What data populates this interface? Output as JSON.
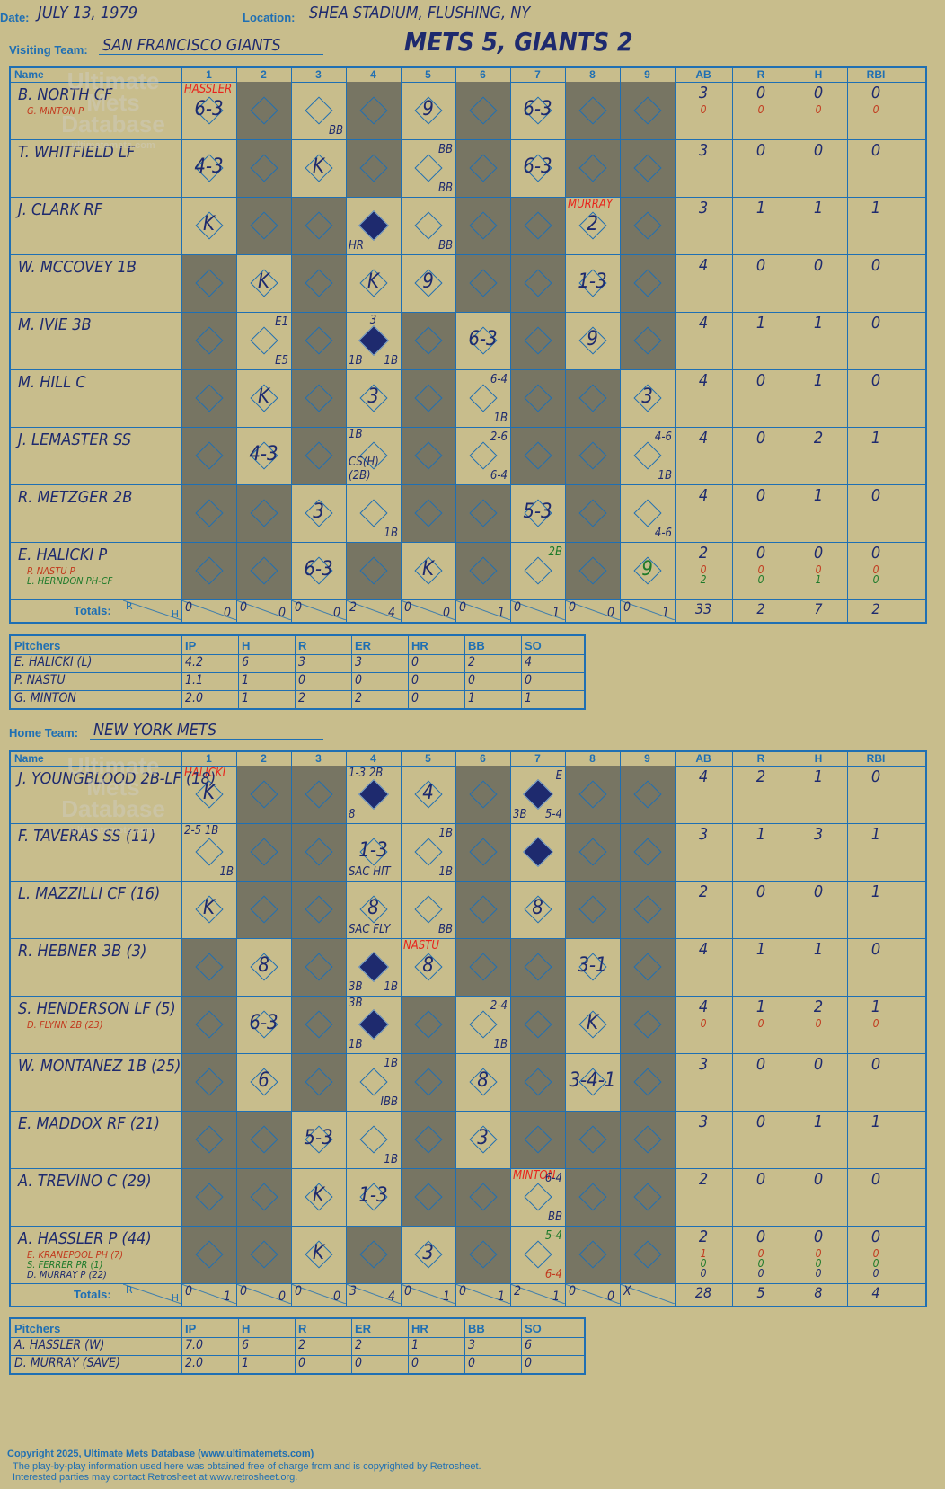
{
  "header": {
    "date_label": "Date:",
    "date": "JULY 13, 1979",
    "location_label": "Location:",
    "location": "SHEA STADIUM, FLUSHING, NY",
    "visiting_label": "Visiting Team:",
    "visiting_team": "SAN FRANCISCO GIANTS",
    "home_label": "Home Team:",
    "home_team": "NEW YORK METS",
    "result": "METS 5, GIANTS 2"
  },
  "columns": {
    "name": "Name",
    "innings": [
      "1",
      "2",
      "3",
      "4",
      "5",
      "6",
      "7",
      "8",
      "9"
    ],
    "stats": [
      "AB",
      "R",
      "H",
      "RBI"
    ]
  },
  "totals_label": "Totals:",
  "rh_r": "R",
  "rh_h": "H",
  "watermark": "Ultimate Mets Database",
  "watermark_sub": "ultimatemets.com",
  "visitors": {
    "players": [
      {
        "name": "B. NORTH CF",
        "sub": [
          {
            "text": "G. MINTON P",
            "color": "ored"
          }
        ],
        "ab": "3",
        "r": "0",
        "h": "0",
        "rbi": "0",
        "sub_stats": [
          {
            "ab": "0",
            "r": "0",
            "h": "0",
            "rbi": "0",
            "color": "ored"
          }
        ]
      },
      {
        "name": "T. WHITFIELD LF",
        "sub": [],
        "ab": "3",
        "r": "0",
        "h": "0",
        "rbi": "0",
        "sub_stats": []
      },
      {
        "name": "J. CLARK RF",
        "sub": [],
        "ab": "3",
        "r": "1",
        "h": "1",
        "rbi": "1",
        "sub_stats": []
      },
      {
        "name": "W. MCCOVEY 1B",
        "sub": [],
        "ab": "4",
        "r": "0",
        "h": "0",
        "rbi": "0",
        "sub_stats": []
      },
      {
        "name": "M. IVIE 3B",
        "sub": [],
        "ab": "4",
        "r": "1",
        "h": "1",
        "rbi": "0",
        "sub_stats": []
      },
      {
        "name": "M. HILL C",
        "sub": [],
        "ab": "4",
        "r": "0",
        "h": "1",
        "rbi": "0",
        "sub_stats": []
      },
      {
        "name": "J. LEMASTER SS",
        "sub": [],
        "ab": "4",
        "r": "0",
        "h": "2",
        "rbi": "1",
        "sub_stats": []
      },
      {
        "name": "R. METZGER 2B",
        "sub": [],
        "ab": "4",
        "r": "0",
        "h": "1",
        "rbi": "0",
        "sub_stats": []
      },
      {
        "name": "E. HALICKI P",
        "sub": [
          {
            "text": "P. NASTU P",
            "color": "ored"
          },
          {
            "text": "L. HERNDON PH-CF",
            "color": "green"
          }
        ],
        "ab": "2",
        "r": "0",
        "h": "0",
        "rbi": "0",
        "sub_stats": [
          {
            "ab": "0",
            "r": "0",
            "h": "0",
            "rbi": "0",
            "color": "ored"
          },
          {
            "ab": "2",
            "r": "0",
            "h": "1",
            "rbi": "0",
            "color": "green"
          }
        ]
      }
    ],
    "dark": [
      [
        0,
        1,
        0,
        1,
        0,
        1,
        0,
        1,
        1
      ],
      [
        0,
        1,
        0,
        1,
        0,
        1,
        0,
        1,
        1
      ],
      [
        0,
        1,
        1,
        0,
        0,
        1,
        1,
        0,
        1
      ],
      [
        1,
        0,
        1,
        0,
        0,
        1,
        1,
        0,
        1
      ],
      [
        1,
        0,
        1,
        0,
        1,
        0,
        1,
        0,
        1
      ],
      [
        1,
        0,
        1,
        0,
        1,
        0,
        1,
        1,
        0
      ],
      [
        1,
        0,
        1,
        0,
        1,
        0,
        1,
        1,
        0
      ],
      [
        1,
        1,
        0,
        0,
        1,
        1,
        0,
        1,
        0
      ],
      [
        1,
        1,
        0,
        1,
        0,
        1,
        0,
        1,
        0
      ]
    ],
    "marks": [
      {
        "r": 0,
        "c": 0,
        "t": "6-3"
      },
      {
        "r": 0,
        "c": 0,
        "t": "HASSLER",
        "k": "red",
        "pos": "tl"
      },
      {
        "r": 0,
        "c": 2,
        "t": "BB",
        "k": "sm",
        "pos": "br"
      },
      {
        "r": 0,
        "c": 4,
        "t": "9"
      },
      {
        "r": 0,
        "c": 6,
        "t": "6-3"
      },
      {
        "r": 1,
        "c": 0,
        "t": "4-3"
      },
      {
        "r": 1,
        "c": 2,
        "t": "K"
      },
      {
        "r": 1,
        "c": 4,
        "t": "BB",
        "k": "sm",
        "pos": "tr"
      },
      {
        "r": 1,
        "c": 4,
        "t": "BB",
        "k": "sm",
        "pos": "br"
      },
      {
        "r": 1,
        "c": 6,
        "t": "6-3"
      },
      {
        "r": 2,
        "c": 0,
        "t": "K"
      },
      {
        "r": 2,
        "c": 3,
        "t": "HR",
        "k": "sm",
        "pos": "bl"
      },
      {
        "r": 2,
        "c": 4,
        "t": "BB",
        "k": "sm",
        "pos": "br"
      },
      {
        "r": 2,
        "c": 7,
        "t": "2"
      },
      {
        "r": 2,
        "c": 7,
        "t": "MURRAY",
        "k": "red",
        "pos": "tl"
      },
      {
        "r": 3,
        "c": 1,
        "t": "K"
      },
      {
        "r": 3,
        "c": 3,
        "t": "K"
      },
      {
        "r": 3,
        "c": 4,
        "t": "9"
      },
      {
        "r": 3,
        "c": 7,
        "t": "1-3"
      },
      {
        "r": 4,
        "c": 1,
        "t": "E1",
        "k": "sm",
        "pos": "tr"
      },
      {
        "r": 4,
        "c": 1,
        "t": "E5",
        "k": "sm",
        "pos": "br"
      },
      {
        "r": 4,
        "c": 3,
        "t": "3",
        "k": "sm",
        "pos": "tm"
      },
      {
        "r": 4,
        "c": 3,
        "t": "1B",
        "k": "sm",
        "pos": "bl"
      },
      {
        "r": 4,
        "c": 3,
        "t": "1B",
        "k": "sm",
        "pos": "br"
      },
      {
        "r": 4,
        "c": 5,
        "t": "6-3"
      },
      {
        "r": 4,
        "c": 7,
        "t": "9"
      },
      {
        "r": 5,
        "c": 1,
        "t": "K"
      },
      {
        "r": 5,
        "c": 3,
        "t": "3"
      },
      {
        "r": 5,
        "c": 5,
        "t": "6-4",
        "k": "sm",
        "pos": "tr"
      },
      {
        "r": 5,
        "c": 5,
        "t": "1B",
        "k": "sm",
        "pos": "br"
      },
      {
        "r": 5,
        "c": 8,
        "t": "3"
      },
      {
        "r": 6,
        "c": 1,
        "t": "4-3"
      },
      {
        "r": 6,
        "c": 3,
        "t": "1B",
        "k": "sm",
        "pos": "tl"
      },
      {
        "r": 6,
        "c": 3,
        "t": "CS(H)(2B)",
        "k": "sm",
        "pos": "bl"
      },
      {
        "r": 6,
        "c": 5,
        "t": "2-6",
        "k": "sm",
        "pos": "tr"
      },
      {
        "r": 6,
        "c": 5,
        "t": "6-4",
        "k": "sm",
        "pos": "br"
      },
      {
        "r": 6,
        "c": 8,
        "t": "4-6",
        "k": "sm",
        "pos": "tr"
      },
      {
        "r": 6,
        "c": 8,
        "t": "1B",
        "k": "sm",
        "pos": "br"
      },
      {
        "r": 7,
        "c": 2,
        "t": "3"
      },
      {
        "r": 7,
        "c": 3,
        "t": "1B",
        "k": "sm",
        "pos": "br"
      },
      {
        "r": 7,
        "c": 6,
        "t": "5-3"
      },
      {
        "r": 7,
        "c": 8,
        "t": "4-6",
        "k": "sm",
        "pos": "br"
      },
      {
        "r": 8,
        "c": 2,
        "t": "6-3"
      },
      {
        "r": 8,
        "c": 4,
        "t": "K"
      },
      {
        "r": 8,
        "c": 6,
        "t": "2B",
        "k": "smg",
        "pos": "tr"
      },
      {
        "r": 8,
        "c": 8,
        "t": "9",
        "k": "g"
      }
    ],
    "runs": [
      [
        2,
        3
      ],
      [
        4,
        3
      ]
    ],
    "totals": [
      [
        "0",
        "0"
      ],
      [
        "0",
        "0"
      ],
      [
        "0",
        "0"
      ],
      [
        "2",
        "4"
      ],
      [
        "0",
        "0"
      ],
      [
        "0",
        "1"
      ],
      [
        "0",
        "1"
      ],
      [
        "0",
        "0"
      ],
      [
        "0",
        "1"
      ]
    ],
    "stat_totals": [
      "33",
      "2",
      "7",
      "2"
    ]
  },
  "visit_pitchers": {
    "headers": [
      "Pitchers",
      "IP",
      "H",
      "R",
      "ER",
      "HR",
      "BB",
      "SO"
    ],
    "rows": [
      [
        "E. HALICKI (L)",
        "4.2",
        "6",
        "3",
        "3",
        "0",
        "2",
        "4"
      ],
      [
        "P. NASTU",
        "1.1",
        "1",
        "0",
        "0",
        "0",
        "0",
        "0"
      ],
      [
        "G. MINTON",
        "2.0",
        "1",
        "2",
        "2",
        "0",
        "1",
        "1"
      ]
    ]
  },
  "home": {
    "players": [
      {
        "name": "J. YOUNGBLOOD 2B-LF (18)",
        "sub": [],
        "ab": "4",
        "r": "2",
        "h": "1",
        "rbi": "0",
        "sub_stats": []
      },
      {
        "name": "F. TAVERAS SS (11)",
        "sub": [],
        "ab": "3",
        "r": "1",
        "h": "3",
        "rbi": "1",
        "sub_stats": []
      },
      {
        "name": "L. MAZZILLI CF (16)",
        "sub": [],
        "ab": "2",
        "r": "0",
        "h": "0",
        "rbi": "1",
        "sub_stats": []
      },
      {
        "name": "R. HEBNER 3B (3)",
        "sub": [],
        "ab": "4",
        "r": "1",
        "h": "1",
        "rbi": "0",
        "sub_stats": []
      },
      {
        "name": "S. HENDERSON LF (5)",
        "sub": [
          {
            "text": "D. FLYNN 2B (23)",
            "color": "ored"
          }
        ],
        "ab": "4",
        "r": "1",
        "h": "2",
        "rbi": "1",
        "sub_stats": [
          {
            "ab": "0",
            "r": "0",
            "h": "0",
            "rbi": "0",
            "color": "ored"
          }
        ]
      },
      {
        "name": "W. MONTANEZ 1B (25)",
        "sub": [],
        "ab": "3",
        "r": "0",
        "h": "0",
        "rbi": "0",
        "sub_stats": []
      },
      {
        "name": "E. MADDOX RF (21)",
        "sub": [],
        "ab": "3",
        "r": "0",
        "h": "1",
        "rbi": "1",
        "sub_stats": []
      },
      {
        "name": "A. TREVINO C (29)",
        "sub": [],
        "ab": "2",
        "r": "0",
        "h": "0",
        "rbi": "0",
        "sub_stats": []
      },
      {
        "name": "A. HASSLER P (44)",
        "sub": [
          {
            "text": "E. KRANEPOOL PH (7)",
            "color": "ored"
          },
          {
            "text": "S. FERRER PR (1)",
            "color": "green"
          },
          {
            "text": "D. MURRAY P (22)",
            "color": "blue"
          }
        ],
        "ab": "2",
        "r": "0",
        "h": "0",
        "rbi": "0",
        "sub_stats": [
          {
            "ab": "1",
            "r": "0",
            "h": "0",
            "rbi": "0",
            "color": "ored"
          },
          {
            "ab": "0",
            "r": "0",
            "h": "0",
            "rbi": "0",
            "color": "green"
          },
          {
            "ab": "0",
            "r": "0",
            "h": "0",
            "rbi": "0",
            "color": "blue"
          }
        ]
      }
    ],
    "dark": [
      [
        0,
        1,
        1,
        0,
        0,
        1,
        0,
        1,
        1
      ],
      [
        0,
        1,
        1,
        0,
        0,
        1,
        0,
        1,
        1
      ],
      [
        0,
        1,
        1,
        0,
        0,
        1,
        0,
        1,
        1
      ],
      [
        1,
        0,
        1,
        0,
        0,
        1,
        1,
        0,
        1
      ],
      [
        1,
        0,
        1,
        0,
        1,
        0,
        1,
        0,
        1
      ],
      [
        1,
        0,
        1,
        0,
        1,
        0,
        1,
        0,
        1
      ],
      [
        1,
        1,
        0,
        0,
        1,
        0,
        1,
        1,
        1
      ],
      [
        1,
        1,
        0,
        0,
        1,
        1,
        0,
        1,
        1
      ],
      [
        1,
        1,
        0,
        1,
        0,
        1,
        0,
        1,
        1
      ]
    ],
    "marks": [
      {
        "r": 0,
        "c": 0,
        "t": "K"
      },
      {
        "r": 0,
        "c": 0,
        "t": "HALICKI",
        "k": "red",
        "pos": "tl"
      },
      {
        "r": 0,
        "c": 3,
        "t": "1-3 2B",
        "k": "sm",
        "pos": "tl"
      },
      {
        "r": 0,
        "c": 3,
        "t": "8",
        "k": "sm",
        "pos": "bl"
      },
      {
        "r": 0,
        "c": 4,
        "t": "4"
      },
      {
        "r": 0,
        "c": 6,
        "t": "E",
        "k": "sm",
        "pos": "tr"
      },
      {
        "r": 0,
        "c": 6,
        "t": "3B",
        "k": "sm",
        "pos": "bl"
      },
      {
        "r": 0,
        "c": 6,
        "t": "5-4",
        "k": "sm",
        "pos": "br"
      },
      {
        "r": 1,
        "c": 0,
        "t": "2-5 1B",
        "k": "sm",
        "pos": "tl"
      },
      {
        "r": 1,
        "c": 0,
        "t": "1B",
        "k": "sm",
        "pos": "br"
      },
      {
        "r": 1,
        "c": 3,
        "t": "1-3"
      },
      {
        "r": 1,
        "c": 3,
        "t": "SAC HIT",
        "k": "sm",
        "pos": "bl"
      },
      {
        "r": 1,
        "c": 4,
        "t": "1B",
        "k": "sm",
        "pos": "tr"
      },
      {
        "r": 1,
        "c": 4,
        "t": "1B",
        "k": "sm",
        "pos": "br"
      },
      {
        "r": 2,
        "c": 0,
        "t": "K"
      },
      {
        "r": 2,
        "c": 3,
        "t": "8"
      },
      {
        "r": 2,
        "c": 3,
        "t": "SAC FLY",
        "k": "sm",
        "pos": "bl"
      },
      {
        "r": 2,
        "c": 4,
        "t": "BB",
        "k": "sm",
        "pos": "br"
      },
      {
        "r": 2,
        "c": 6,
        "t": "8"
      },
      {
        "r": 3,
        "c": 1,
        "t": "8"
      },
      {
        "r": 3,
        "c": 3,
        "t": "3B",
        "k": "sm",
        "pos": "bl"
      },
      {
        "r": 3,
        "c": 3,
        "t": "1B",
        "k": "sm",
        "pos": "br"
      },
      {
        "r": 3,
        "c": 4,
        "t": "8"
      },
      {
        "r": 3,
        "c": 4,
        "t": "NASTU",
        "k": "red",
        "pos": "tl"
      },
      {
        "r": 3,
        "c": 7,
        "t": "3-1"
      },
      {
        "r": 4,
        "c": 1,
        "t": "6-3"
      },
      {
        "r": 4,
        "c": 3,
        "t": "3B",
        "k": "sm",
        "pos": "tl"
      },
      {
        "r": 4,
        "c": 3,
        "t": "1B",
        "k": "sm",
        "pos": "bl"
      },
      {
        "r": 4,
        "c": 5,
        "t": "2-4",
        "k": "sm",
        "pos": "tr"
      },
      {
        "r": 4,
        "c": 5,
        "t": "1B",
        "k": "sm",
        "pos": "br"
      },
      {
        "r": 4,
        "c": 7,
        "t": "K"
      },
      {
        "r": 5,
        "c": 1,
        "t": "6"
      },
      {
        "r": 5,
        "c": 3,
        "t": "1B",
        "k": "sm",
        "pos": "tr"
      },
      {
        "r": 5,
        "c": 3,
        "t": "IBB",
        "k": "sm",
        "pos": "br"
      },
      {
        "r": 5,
        "c": 5,
        "t": "8"
      },
      {
        "r": 5,
        "c": 7,
        "t": "3-4-1"
      },
      {
        "r": 6,
        "c": 2,
        "t": "5-3"
      },
      {
        "r": 6,
        "c": 3,
        "t": "1B",
        "k": "sm",
        "pos": "br"
      },
      {
        "r": 6,
        "c": 5,
        "t": "3"
      },
      {
        "r": 7,
        "c": 2,
        "t": "K"
      },
      {
        "r": 7,
        "c": 3,
        "t": "1-3"
      },
      {
        "r": 7,
        "c": 6,
        "t": "MINTON",
        "k": "red",
        "pos": "tl"
      },
      {
        "r": 7,
        "c": 6,
        "t": "6-4",
        "k": "sm",
        "pos": "tr"
      },
      {
        "r": 7,
        "c": 6,
        "t": "BB",
        "k": "sm",
        "pos": "br"
      },
      {
        "r": 8,
        "c": 2,
        "t": "K"
      },
      {
        "r": 8,
        "c": 4,
        "t": "3"
      },
      {
        "r": 8,
        "c": 6,
        "t": "5-4",
        "k": "smg",
        "pos": "tr"
      },
      {
        "r": 8,
        "c": 6,
        "t": "6-4",
        "k": "smr",
        "pos": "br"
      }
    ],
    "runs": [
      [
        0,
        3
      ],
      [
        0,
        6
      ],
      [
        1,
        6
      ],
      [
        3,
        3
      ],
      [
        4,
        3
      ]
    ],
    "totals": [
      [
        "0",
        "1"
      ],
      [
        "0",
        "0"
      ],
      [
        "0",
        "0"
      ],
      [
        "3",
        "4"
      ],
      [
        "0",
        "1"
      ],
      [
        "0",
        "1"
      ],
      [
        "2",
        "1"
      ],
      [
        "0",
        "0"
      ],
      [
        "X",
        ""
      ]
    ],
    "stat_totals": [
      "28",
      "5",
      "8",
      "4"
    ]
  },
  "home_pitchers": {
    "headers": [
      "Pitchers",
      "IP",
      "H",
      "R",
      "ER",
      "HR",
      "BB",
      "SO"
    ],
    "rows": [
      [
        "A. HASSLER (W)",
        "7.0",
        "6",
        "2",
        "2",
        "1",
        "3",
        "6"
      ],
      [
        "D. MURRAY (SAVE)",
        "2.0",
        "1",
        "0",
        "0",
        "0",
        "0",
        "0"
      ]
    ]
  },
  "footer": {
    "line1": "Copyright 2025, Ultimate Mets Database (www.ultimatemets.com)",
    "line2": "The play-by-play information used here was obtained free of charge from and is copyrighted by Retrosheet.",
    "line3": "Interested parties may contact Retrosheet at www.retrosheet.org."
  }
}
